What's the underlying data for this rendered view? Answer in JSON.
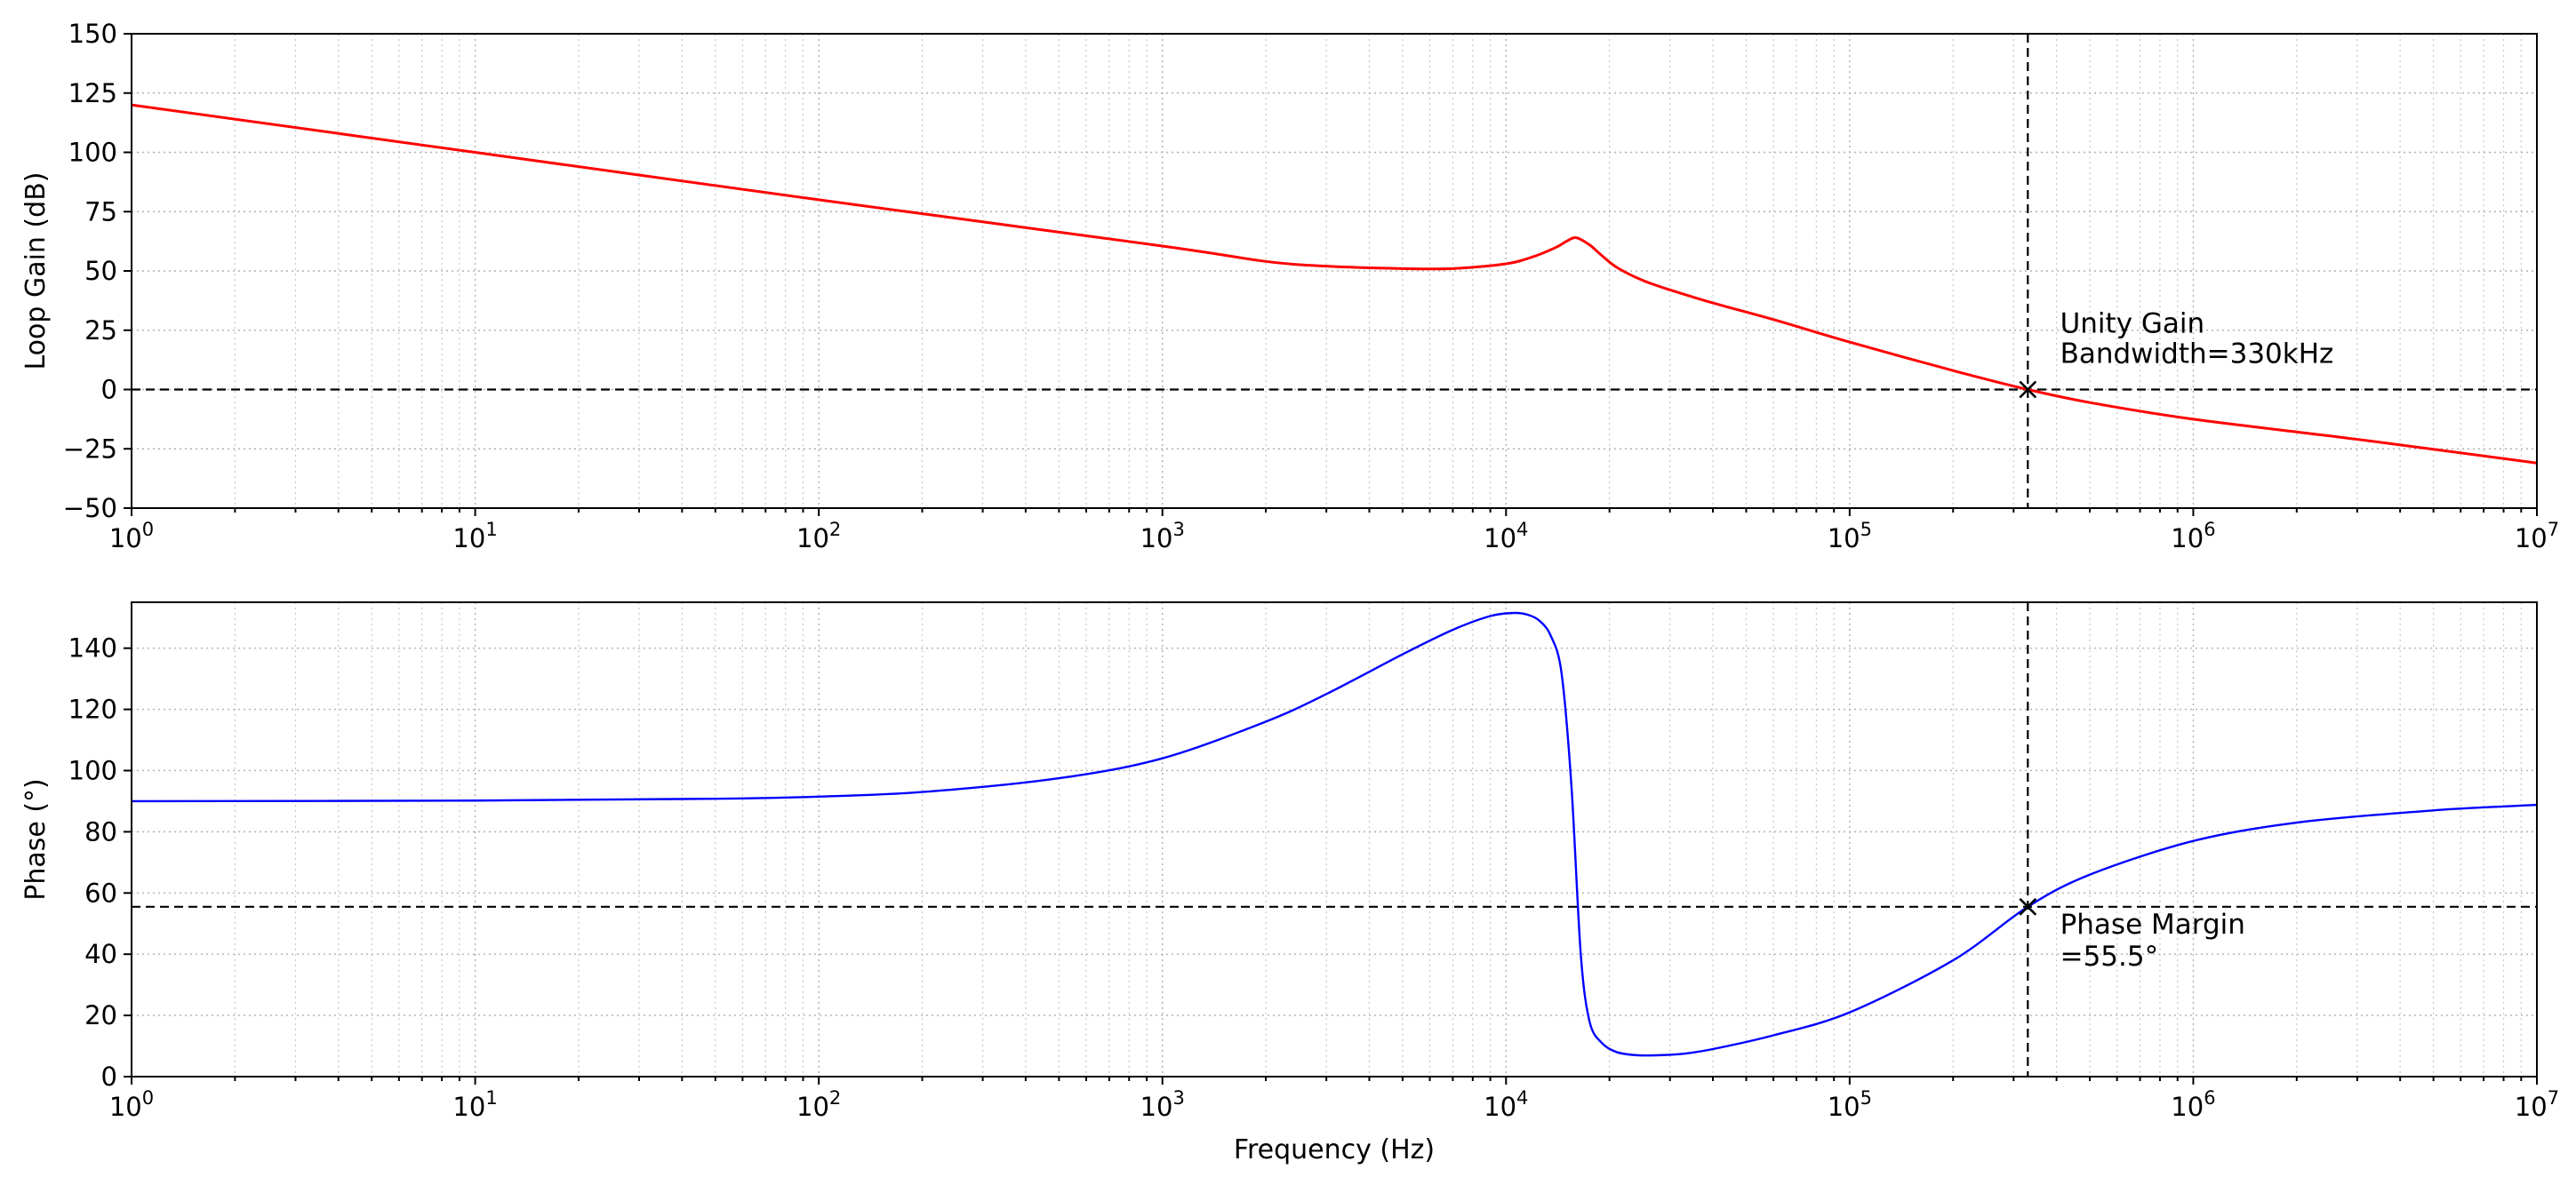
{
  "chart_data": [
    {
      "type": "line",
      "id": "gain",
      "xlabel": "",
      "ylabel": "Loop Gain (dB)",
      "xscale": "log",
      "xlim": [
        1,
        10000000
      ],
      "ylim": [
        -50,
        150
      ],
      "yticks": [
        -50,
        -25,
        0,
        25,
        50,
        75,
        100,
        125,
        150
      ],
      "xtick_labels": [
        {
          "base": "10",
          "exp": "0"
        },
        {
          "base": "10",
          "exp": "1"
        },
        {
          "base": "10",
          "exp": "2"
        },
        {
          "base": "10",
          "exp": "3"
        },
        {
          "base": "10",
          "exp": "4"
        },
        {
          "base": "10",
          "exp": "5"
        },
        {
          "base": "10",
          "exp": "6"
        },
        {
          "base": "10",
          "exp": "7"
        }
      ],
      "grid": true,
      "series": [
        {
          "color": "#ff0000",
          "x": [
            1,
            10,
            100,
            1000,
            2000,
            3000,
            5000,
            7000,
            10000,
            12000,
            14000,
            15000,
            16000,
            17500,
            19000,
            21000,
            25000,
            30000,
            40000,
            60000,
            100000,
            200000,
            330000,
            500000,
            1000000,
            3000000,
            10000000
          ],
          "y": [
            120,
            100,
            80,
            60.5,
            54,
            52,
            51,
            51,
            53,
            56,
            60,
            62.5,
            64,
            61,
            56.5,
            51.5,
            46,
            42,
            36.5,
            29.5,
            20,
            8,
            0,
            -5.5,
            -12.5,
            -21,
            -31
          ]
        }
      ],
      "hline": 0,
      "vline": 330000,
      "marker": {
        "x": 330000,
        "y": 0,
        "symbol": "x"
      },
      "annotation": {
        "lines": [
          "Unity Gain",
          "Bandwidth=330kHz"
        ],
        "x": 400000,
        "y": 0
      }
    },
    {
      "type": "line",
      "id": "phase",
      "xlabel": "Frequency (Hz)",
      "ylabel": "Phase (°)",
      "xscale": "log",
      "xlim": [
        1,
        10000000
      ],
      "ylim": [
        0,
        155
      ],
      "yticks": [
        0,
        20,
        40,
        60,
        80,
        100,
        120,
        140
      ],
      "xtick_labels": [
        {
          "base": "10",
          "exp": "0"
        },
        {
          "base": "10",
          "exp": "1"
        },
        {
          "base": "10",
          "exp": "2"
        },
        {
          "base": "10",
          "exp": "3"
        },
        {
          "base": "10",
          "exp": "4"
        },
        {
          "base": "10",
          "exp": "5"
        },
        {
          "base": "10",
          "exp": "6"
        },
        {
          "base": "10",
          "exp": "7"
        }
      ],
      "grid": true,
      "series": [
        {
          "color": "#0000ff",
          "x": [
            1,
            10,
            50,
            100,
            200,
            500,
            1000,
            2000,
            3000,
            5000,
            7000,
            9000,
            10500,
            11500,
            12500,
            13500,
            14500,
            15500,
            16500,
            17500,
            19000,
            21000,
            24000,
            28000,
            33000,
            40000,
            60000,
            100000,
            200000,
            330000,
            500000,
            1000000,
            2000000,
            5000000,
            10000000
          ],
          "y": [
            90,
            90.2,
            90.8,
            91.5,
            93,
            97.5,
            104,
            116,
            125,
            138,
            146,
            150.5,
            151.5,
            151,
            149,
            144,
            132,
            95,
            40,
            18,
            11,
            8,
            7,
            7,
            7.5,
            9,
            13.5,
            21,
            38,
            55.5,
            66,
            77,
            83,
            87,
            88.8
          ]
        }
      ],
      "hline": 55.5,
      "vline": 330000,
      "marker": {
        "x": 330000,
        "y": 55.5,
        "symbol": "x"
      },
      "annotation": {
        "lines": [
          "Phase Margin",
          "=55.5°"
        ],
        "x": 400000,
        "y": 55.5
      }
    }
  ]
}
